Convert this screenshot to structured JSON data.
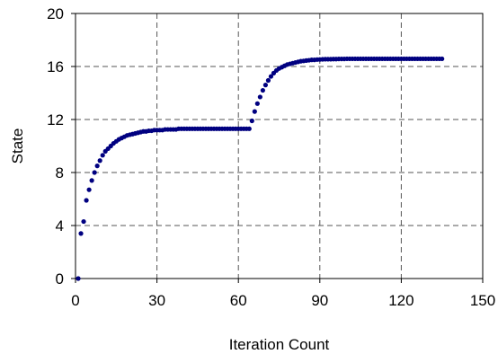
{
  "chart_data": {
    "type": "scatter",
    "title": "",
    "xlabel": "Iteration Count",
    "ylabel": "State",
    "xlim": [
      0,
      150
    ],
    "ylim": [
      0,
      20
    ],
    "xticks": [
      0,
      30,
      60,
      90,
      120,
      150
    ],
    "yticks": [
      0,
      4,
      8,
      12,
      16,
      20
    ],
    "grid": true,
    "legend": "none",
    "marker_color": "#000080",
    "series": [
      {
        "x": [
          1,
          2,
          3,
          4,
          5,
          6,
          7,
          8,
          9,
          10,
          11,
          12,
          13,
          14,
          15,
          16,
          17,
          18,
          19,
          20,
          21,
          22,
          23,
          24,
          25,
          26,
          27,
          28,
          29,
          30,
          31,
          32,
          33,
          34,
          35,
          36,
          37,
          38,
          39,
          40,
          41,
          42,
          43,
          44,
          45,
          46,
          47,
          48,
          49,
          50,
          51,
          52,
          53,
          54,
          55,
          56,
          57,
          58,
          59,
          60,
          61,
          62,
          63,
          64,
          65,
          66,
          67,
          68,
          69,
          70,
          71,
          72,
          73,
          74,
          75,
          76,
          77,
          78,
          79,
          80,
          81,
          82,
          83,
          84,
          85,
          86,
          87,
          88,
          89,
          90,
          91,
          92,
          93,
          94,
          95,
          96,
          97,
          98,
          99,
          100,
          101,
          102,
          103,
          104,
          105,
          106,
          107,
          108,
          109,
          110,
          111,
          112,
          113,
          114,
          115,
          116,
          117,
          118,
          119,
          120,
          121,
          122,
          123,
          124,
          125,
          126,
          127,
          128,
          129,
          130,
          131,
          132,
          133,
          134,
          135
        ],
        "y": [
          0,
          3.4,
          4.3,
          5.9,
          6.7,
          7.4,
          8.0,
          8.5,
          8.9,
          9.3,
          9.6,
          9.8,
          10.0,
          10.2,
          10.35,
          10.5,
          10.6,
          10.7,
          10.8,
          10.85,
          10.9,
          10.95,
          11.0,
          11.05,
          11.1,
          11.1,
          11.15,
          11.15,
          11.2,
          11.2,
          11.2,
          11.2,
          11.25,
          11.25,
          11.25,
          11.25,
          11.25,
          11.3,
          11.3,
          11.3,
          11.3,
          11.3,
          11.3,
          11.3,
          11.3,
          11.3,
          11.3,
          11.3,
          11.3,
          11.3,
          11.3,
          11.3,
          11.3,
          11.3,
          11.3,
          11.3,
          11.3,
          11.3,
          11.3,
          11.3,
          11.3,
          11.3,
          11.3,
          11.3,
          11.9,
          12.6,
          13.2,
          13.7,
          14.2,
          14.6,
          14.95,
          15.25,
          15.5,
          15.7,
          15.85,
          15.95,
          16.05,
          16.15,
          16.2,
          16.25,
          16.3,
          16.35,
          16.4,
          16.42,
          16.45,
          16.47,
          16.5,
          16.5,
          16.52,
          16.53,
          16.54,
          16.55,
          16.55,
          16.55,
          16.56,
          16.56,
          16.57,
          16.57,
          16.57,
          16.58,
          16.58,
          16.58,
          16.58,
          16.58,
          16.58,
          16.58,
          16.58,
          16.58,
          16.58,
          16.58,
          16.58,
          16.58,
          16.58,
          16.58,
          16.58,
          16.58,
          16.58,
          16.58,
          16.58,
          16.58,
          16.58,
          16.58,
          16.58,
          16.58,
          16.58,
          16.58,
          16.58,
          16.58,
          16.58,
          16.58,
          16.58,
          16.58,
          16.58,
          16.58,
          16.58
        ]
      }
    ]
  }
}
